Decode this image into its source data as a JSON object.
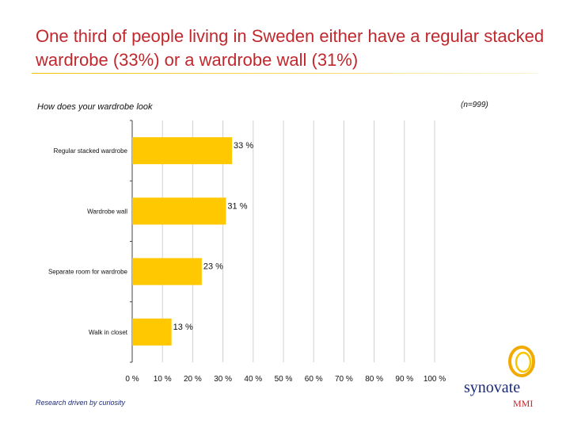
{
  "page": {
    "title": "One third of people living in Sweden either have a regular stacked wardrobe (33%) or a wardrobe wall (31%)",
    "question": "How does your wardrobe look",
    "sample": "(n=999)",
    "footer": "Research driven by curiosity",
    "logo": {
      "word": "synovate",
      "sub": "MMI"
    }
  },
  "colors": {
    "title": "#c0282d",
    "bar": "#ffc800",
    "rule": "#f2c200",
    "logo_ring": "#f2a900",
    "logo_text": "#1b2a7a"
  },
  "chart_data": {
    "type": "bar",
    "orientation": "horizontal",
    "categories": [
      "Regular stacked wardrobe",
      "Wardrobe wall",
      "Separate room for wardrobe",
      "Walk in closet"
    ],
    "values": [
      33,
      31,
      23,
      13
    ],
    "value_labels": [
      "33 %",
      "31 %",
      "23 %",
      "13 %"
    ],
    "xlim": [
      0,
      100
    ],
    "xticks": [
      0,
      10,
      20,
      30,
      40,
      50,
      60,
      70,
      80,
      90,
      100
    ],
    "xtick_labels": [
      "0 %",
      "10 %",
      "20 %",
      "30 %",
      "40 %",
      "50 %",
      "60 %",
      "70 %",
      "80 %",
      "90 %",
      "100 %"
    ],
    "grid": true,
    "legend": "none"
  }
}
